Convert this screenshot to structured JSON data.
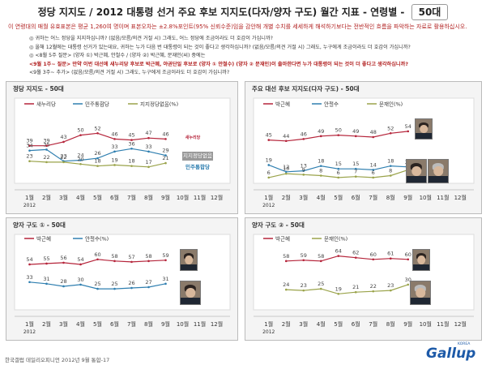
{
  "header": {
    "title": "정당 지지도 / 2012 대통령 선거 주요 후보 지지도(다자/양자 구도) 월간 지표 - 연령별 -",
    "badge": "50대"
  },
  "subnote": "이 연령대의 매월 유효표본은 평균 1,260여 명이며 표본오차는 ±2.8%포인트(95% 신뢰수준)임을 감안해 개별 수치를 세세하게 해석하기보다는 전반적인 흐름을 파악하는 자료로 활용하십시오.",
  "questions": [
    "◎ 귀하는 어느 정당을 지지하십니까? (없음/모름/의견 거절 시) 그래도, 어느 정당에 조금이라도 더 호감이 가십니까?",
    "◎ 올해 12월에는 대통령 선거가 있는데요, 귀하는 누가 다음 번 대통령이 되는 것이 좋다고 생각하십니까? (없음/모름/의견 거절 시) 그래도, 누구에게 조금이라도 더 호감이 가십니까?",
    "◎ <8월 5주 질문> (양자 ①) 박근혜, 안철수 / (양자 ②) 박근혜, 문재인(씨) 중에는",
    "<9월 1주~ 질문> 만약 이번 대선에 새누리당 후보로 박근혜, 야권단일 후보로 (양자 ① 안철수) (양자 ② 문재인)이 출마한다면 누가 대통령이 되는 것이 더 좋다고 생각하십니까?",
    "<9월 3주~ 추가> (없음/모름/의견 거절 시) 그래도, 누구에게 조금이라도 더 호감이 가십니까?"
  ],
  "footer": {
    "left": "한국갤럽 데일리오피니언 2012년 9월 통합-17",
    "brand": "Gallup",
    "brand_sub": "KOREA"
  },
  "logos": {
    "saenuri": "새누리당",
    "no_party": "지지정당없음",
    "democratic": "민주통합당"
  },
  "colors": {
    "red": "#b5243a",
    "blue": "#2f7fb0",
    "olive": "#9aa34a"
  },
  "chart_data": [
    {
      "type": "line",
      "title": "정당 지지도 - 50대",
      "categories": [
        "1월",
        "2월",
        "3월",
        "4월",
        "5월",
        "6월",
        "7월",
        "8월",
        "9월",
        "10월",
        "11월",
        "12월"
      ],
      "year_label": "2012",
      "series": [
        {
          "name": "새누리당",
          "color": "#b5243a",
          "values": [
            39,
            39,
            43,
            50,
            52,
            46,
            45,
            47,
            46,
            null,
            null,
            null
          ]
        },
        {
          "name": "민주통합당",
          "color": "#2f7fb0",
          "values": [
            34,
            35,
            23,
            24,
            26,
            33,
            36,
            33,
            29,
            null,
            null,
            null
          ]
        },
        {
          "name": "지지정당없음(%)",
          "color": "#9aa34a",
          "values": [
            23,
            22,
            22,
            20,
            18,
            19,
            18,
            17,
            21,
            null,
            null,
            null
          ]
        }
      ],
      "ylim": [
        0,
        80
      ]
    },
    {
      "type": "line",
      "title": "주요 대선 후보 지지도(다자 구도) - 50대",
      "categories": [
        "1월",
        "2월",
        "3월",
        "4월",
        "5월",
        "6월",
        "7월",
        "8월",
        "9월",
        "10월",
        "11월",
        "12월"
      ],
      "year_label": "2012",
      "series": [
        {
          "name": "박근혜",
          "color": "#b5243a",
          "values": [
            45,
            44,
            46,
            49,
            50,
            49,
            48,
            52,
            54,
            null,
            null,
            null
          ]
        },
        {
          "name": "안철수",
          "color": "#2f7fb0",
          "values": [
            19,
            12,
            13,
            18,
            15,
            15,
            14,
            18,
            17,
            null,
            null,
            null
          ]
        },
        {
          "name": "문재인(%)",
          "color": "#9aa34a",
          "values": [
            6,
            10,
            9,
            8,
            6,
            7,
            6,
            8,
            14,
            null,
            null,
            null
          ]
        }
      ],
      "ylim": [
        0,
        80
      ]
    },
    {
      "type": "line",
      "title": "양자 구도 ① - 50대",
      "categories": [
        "1월",
        "2월",
        "3월",
        "4월",
        "5월",
        "6월",
        "7월",
        "8월",
        "9월",
        "10월",
        "11월",
        "12월"
      ],
      "year_label": "2012",
      "series": [
        {
          "name": "박근혜",
          "color": "#b5243a",
          "values": [
            54,
            55,
            56,
            54,
            60,
            58,
            57,
            58,
            59,
            null,
            null,
            null
          ]
        },
        {
          "name": "안철수(%)",
          "color": "#2f7fb0",
          "values": [
            33,
            31,
            28,
            30,
            25,
            25,
            26,
            27,
            31,
            null,
            null,
            null
          ]
        }
      ],
      "ylim": [
        0,
        80
      ]
    },
    {
      "type": "line",
      "title": "양자 구도 ② - 50대",
      "categories": [
        "1월",
        "2월",
        "3월",
        "4월",
        "5월",
        "6월",
        "7월",
        "8월",
        "9월",
        "10월",
        "11월",
        "12월"
      ],
      "year_label": "2012",
      "series": [
        {
          "name": "박근혜",
          "color": "#b5243a",
          "values": [
            null,
            58,
            59,
            58,
            64,
            62,
            60,
            61,
            60,
            null,
            null,
            null
          ]
        },
        {
          "name": "문재인(%)",
          "color": "#9aa34a",
          "values": [
            null,
            24,
            23,
            25,
            19,
            21,
            22,
            23,
            30,
            null,
            null,
            null
          ]
        }
      ],
      "ylim": [
        0,
        80
      ]
    }
  ]
}
